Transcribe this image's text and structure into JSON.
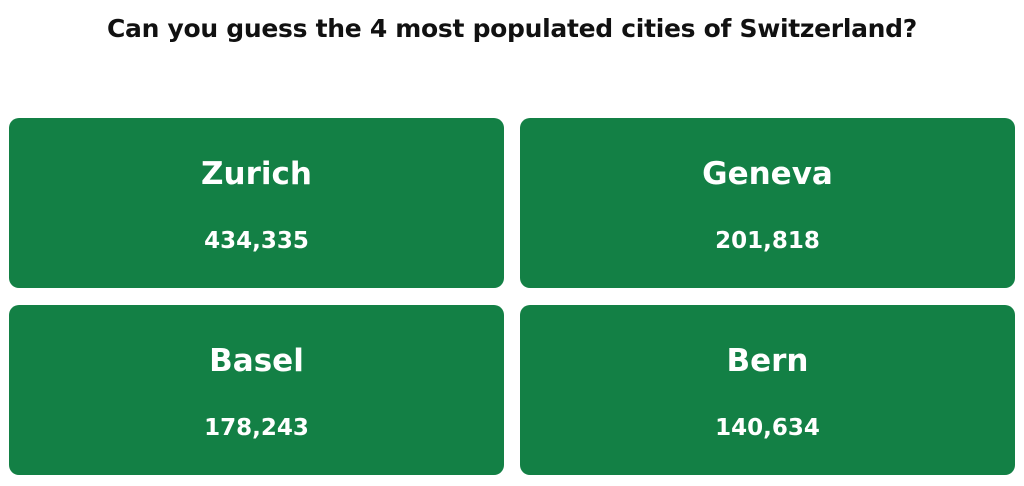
{
  "header": {
    "title": "Can you guess the 4 most populated cities of Switzerland?"
  },
  "cards": [
    {
      "name": "Zurich",
      "population": "434,335"
    },
    {
      "name": "Geneva",
      "population": "201,818"
    },
    {
      "name": "Basel",
      "population": "178,243"
    },
    {
      "name": "Bern",
      "population": "140,634"
    }
  ]
}
